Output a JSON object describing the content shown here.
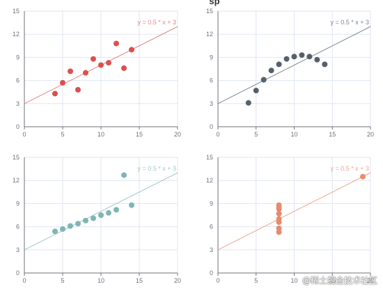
{
  "title_fragment": "sp",
  "watermark": "@稀土掘金技术社区",
  "chart_data": [
    {
      "type": "scatter",
      "dot_color": "#dd4f4f",
      "line_color": "#e58585",
      "line_label": "y = 0.5 * x + 3",
      "xlim": [
        0,
        20
      ],
      "ylim": [
        0,
        15
      ],
      "xticks": [
        0,
        5,
        10,
        15,
        20
      ],
      "yticks": [
        0,
        3,
        6,
        9,
        12,
        15
      ],
      "grid": true,
      "points": [
        [
          4,
          4.3
        ],
        [
          5,
          5.7
        ],
        [
          6,
          7.2
        ],
        [
          7,
          4.8
        ],
        [
          8,
          7.0
        ],
        [
          9,
          8.8
        ],
        [
          10,
          8.0
        ],
        [
          11,
          8.3
        ],
        [
          12,
          10.8
        ],
        [
          13,
          7.6
        ],
        [
          14,
          10.0
        ]
      ],
      "line": [
        [
          0,
          3
        ],
        [
          20,
          13
        ]
      ]
    },
    {
      "type": "scatter",
      "dot_color": "#55606e",
      "line_color": "#7d8794",
      "line_label": "y = 0.5 * x + 3",
      "xlim": [
        0,
        20
      ],
      "ylim": [
        0,
        15
      ],
      "xticks": [
        0,
        5,
        10,
        15,
        20
      ],
      "yticks": [
        0,
        3,
        6,
        9,
        12,
        15
      ],
      "grid": true,
      "points": [
        [
          4,
          3.1
        ],
        [
          5,
          4.7
        ],
        [
          6,
          6.1
        ],
        [
          7,
          7.3
        ],
        [
          8,
          8.1
        ],
        [
          9,
          8.8
        ],
        [
          10,
          9.1
        ],
        [
          11,
          9.3
        ],
        [
          12,
          9.1
        ],
        [
          13,
          8.7
        ],
        [
          14,
          8.1
        ]
      ],
      "line": [
        [
          0,
          3
        ],
        [
          20,
          13
        ]
      ]
    },
    {
      "type": "scatter",
      "dot_color": "#7fb5b5",
      "line_color": "#9ec7c7",
      "line_label": "y = 0.5 * x + 3",
      "xlim": [
        0,
        20
      ],
      "ylim": [
        0,
        15
      ],
      "xticks": [
        0,
        5,
        10,
        15,
        20
      ],
      "yticks": [
        0,
        3,
        6,
        9,
        12,
        15
      ],
      "grid": true,
      "points": [
        [
          4,
          5.4
        ],
        [
          5,
          5.7
        ],
        [
          6,
          6.1
        ],
        [
          7,
          6.4
        ],
        [
          8,
          6.8
        ],
        [
          9,
          7.1
        ],
        [
          10,
          7.5
        ],
        [
          11,
          7.8
        ],
        [
          12,
          8.2
        ],
        [
          13,
          12.7
        ],
        [
          14,
          8.8
        ]
      ],
      "line": [
        [
          0,
          3
        ],
        [
          20,
          13
        ]
      ]
    },
    {
      "type": "scatter",
      "dot_color": "#e88a6c",
      "line_color": "#eea58e",
      "line_label": "y = 0.5 * x + 3",
      "xlim": [
        0,
        20
      ],
      "ylim": [
        0,
        15
      ],
      "xticks": [
        0,
        5,
        10,
        15,
        20
      ],
      "yticks": [
        0,
        3,
        6,
        9,
        12,
        15
      ],
      "grid": true,
      "points": [
        [
          8,
          5.3
        ],
        [
          8,
          5.8
        ],
        [
          8,
          6.6
        ],
        [
          8,
          7.0
        ],
        [
          8,
          7.7
        ],
        [
          8,
          8.3
        ],
        [
          8,
          8.5
        ],
        [
          8,
          8.8
        ],
        [
          19,
          12.5
        ]
      ],
      "line": [
        [
          0,
          3
        ],
        [
          20,
          13
        ]
      ]
    }
  ]
}
